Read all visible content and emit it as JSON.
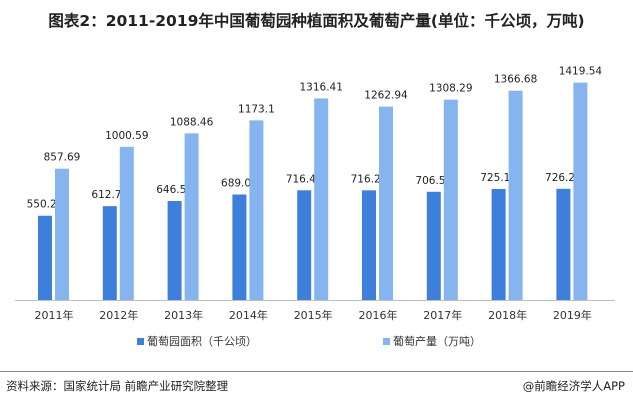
{
  "chart_data": {
    "type": "bar",
    "title": "图表2：2011-2019年中国葡萄园种植面积及葡萄产量(单位：千公顷，万吨)",
    "categories": [
      "2011年",
      "2012年",
      "2013年",
      "2014年",
      "2015年",
      "2016年",
      "2017年",
      "2018年",
      "2019年"
    ],
    "series": [
      {
        "name": "葡萄园面积（千公顷）",
        "color": "#3f7fdc",
        "values": [
          550.28,
          612.75,
          646.57,
          689.05,
          716.41,
          716.21,
          706.55,
          725.1,
          726.2
        ],
        "labels": [
          "550.28",
          "612.75",
          "646.57",
          "689.05",
          "716.41",
          "716.21",
          "706.55",
          "725.10",
          "726.20"
        ]
      },
      {
        "name": "葡萄产量（万吨）",
        "color": "#85b4ef",
        "values": [
          857.69,
          1000.59,
          1088.46,
          1173.1,
          1316.41,
          1262.94,
          1308.29,
          1366.68,
          1419.54
        ],
        "labels": [
          "857.69",
          "1000.59",
          "1088.46",
          "1173.1",
          "1316.41",
          "1262.94",
          "1308.29",
          "1366.68",
          "1419.54"
        ]
      }
    ],
    "ylim": [
      0,
      1600
    ],
    "grid": false,
    "legend": "bottom"
  },
  "footer": {
    "source": "资料来源：国家统计局 前瞻产业研究院整理",
    "brand": "@前瞻经济学人APP"
  }
}
